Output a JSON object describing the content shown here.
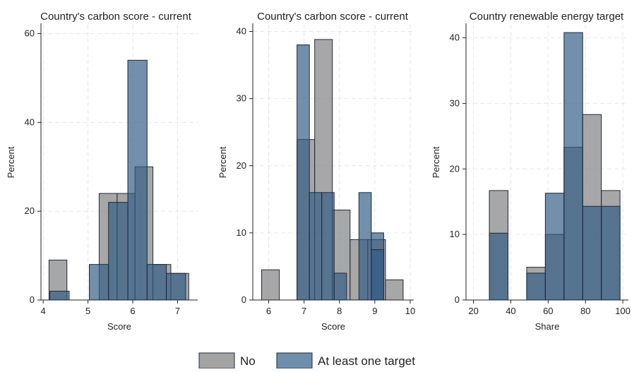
{
  "colors": {
    "no": "#8c8c8c",
    "target": "#3a5f85",
    "overlap": "#3b4f66",
    "grid": "#e6e6e6",
    "axis": "#222222"
  },
  "legend": {
    "items": [
      {
        "label": "No",
        "color": "#a3a3a3"
      },
      {
        "label": "At least one target",
        "color": "#6f8eab"
      }
    ]
  },
  "chart_data": [
    {
      "type": "bar",
      "title": "Country's carbon score - current",
      "xlabel": "Score",
      "ylabel": "Percent",
      "xlim": [
        3.95,
        7.45
      ],
      "ylim": [
        0,
        62
      ],
      "xticks": [
        4,
        5,
        6,
        7
      ],
      "yticks": [
        0,
        20,
        40,
        60
      ],
      "grid": true,
      "series": [
        {
          "name": "No",
          "bins": [
            [
              4.13,
              4.53,
              9
            ],
            [
              5.25,
              5.65,
              24
            ],
            [
              5.65,
              6.05,
              24
            ],
            [
              6.05,
              6.45,
              30
            ],
            [
              6.45,
              6.85,
              8
            ],
            [
              6.85,
              7.25,
              6
            ]
          ]
        },
        {
          "name": "At least one target",
          "bins": [
            [
              4.15,
              4.58,
              2
            ],
            [
              5.03,
              5.46,
              8
            ],
            [
              5.46,
              5.89,
              22
            ],
            [
              5.89,
              6.32,
              54
            ],
            [
              6.32,
              6.75,
              8
            ],
            [
              6.75,
              7.18,
              6
            ]
          ]
        }
      ]
    },
    {
      "type": "bar",
      "title": "Country's carbon score - current",
      "xlabel": "Score",
      "ylabel": "Percent",
      "xlim": [
        5.55,
        10.1
      ],
      "ylim": [
        0,
        41
      ],
      "xticks": [
        6,
        7,
        8,
        9,
        10
      ],
      "yticks": [
        0,
        10,
        20,
        30,
        40
      ],
      "grid": true,
      "series": [
        {
          "name": "No",
          "bins": [
            [
              5.8,
              6.3,
              4.5
            ],
            [
              6.8,
              7.3,
              23.9
            ],
            [
              7.3,
              7.8,
              38.8
            ],
            [
              7.8,
              8.3,
              13.4
            ],
            [
              8.3,
              8.8,
              9
            ],
            [
              8.8,
              9.3,
              9
            ],
            [
              9.3,
              9.8,
              3
            ]
          ]
        },
        {
          "name": "At least one target",
          "bins": [
            [
              6.8,
              7.15,
              38
            ],
            [
              7.15,
              7.5,
              16
            ],
            [
              7.5,
              7.85,
              16
            ],
            [
              7.85,
              8.2,
              4
            ],
            [
              8.55,
              8.9,
              16
            ],
            [
              8.9,
              9.25,
              10
            ],
            [
              8.9,
              9.25,
              7.5
            ]
          ]
        }
      ]
    },
    {
      "type": "bar",
      "title": "Country renewable energy target",
      "xlabel": "Share",
      "ylabel": "Percent",
      "xlim": [
        16,
        103
      ],
      "ylim": [
        0,
        42
      ],
      "xticks": [
        20,
        40,
        60,
        80,
        100
      ],
      "yticks": [
        0,
        10,
        20,
        30,
        40
      ],
      "grid": true,
      "series": [
        {
          "name": "No",
          "bins": [
            [
              28.5,
              38.5,
              16.7
            ],
            [
              48.5,
              58.5,
              5
            ],
            [
              58.5,
              68.5,
              10
            ],
            [
              68.5,
              78.5,
              23.3
            ],
            [
              78.5,
              88.5,
              28.3
            ],
            [
              88.5,
              98.5,
              16.7
            ]
          ]
        },
        {
          "name": "At least one target",
          "bins": [
            [
              28.5,
              38.5,
              10.2
            ],
            [
              48.5,
              58.5,
              4.1
            ],
            [
              58.5,
              68.5,
              16.3
            ],
            [
              68.5,
              78.5,
              40.8
            ],
            [
              78.5,
              88.5,
              14.3
            ],
            [
              88.5,
              98.5,
              14.3
            ]
          ]
        }
      ]
    }
  ]
}
